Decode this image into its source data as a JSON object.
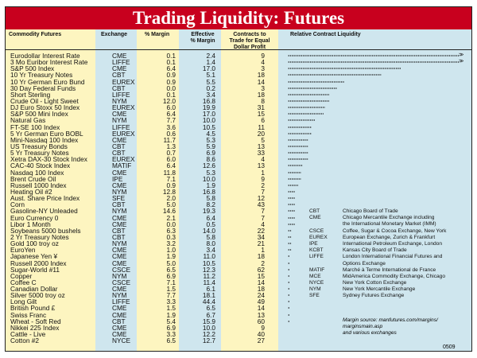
{
  "title": "Trading Liquidity: Futures",
  "chart_data": {
    "type": "table",
    "columns": [
      "Commodity Futures",
      "Exchange",
      "% Margin",
      "Effective % Margin",
      "Contracts to Trade for Equal Dollar Profit",
      "Relative Contract Liquidity"
    ],
    "rows": [
      [
        "Eurodollar Interest Rate",
        "CME",
        "0.1",
        "2.4",
        "9",
        100,
        true
      ],
      [
        "3 Mo Euribor Interest Rate",
        "LIFFE",
        "0.1",
        "1.4",
        "4",
        100,
        true
      ],
      [
        "S&P 500 Index",
        "CME",
        "6.4",
        "17.0",
        "3",
        66,
        false
      ],
      [
        "10 Yr Treasury Notes",
        "CBT",
        "0.9",
        "5.1",
        "18",
        55,
        false
      ],
      [
        "10 Yr German Euro Bund",
        "EUREX",
        "0.9",
        "5.5",
        "14",
        33,
        false
      ],
      [
        "30 Day Federal Funds",
        "CBT",
        "0.0",
        "0.2",
        "3",
        29,
        false
      ],
      [
        "Short Sterling",
        "LIFFE",
        "0.1",
        "3.4",
        "18",
        24,
        false
      ],
      [
        "Crude Oil - Light Sweet",
        "NYM",
        "12.0",
        "16.8",
        "8",
        24,
        false
      ],
      [
        "DJ Euro Stoxx 50 Index",
        "EUREX",
        "6.0",
        "19.9",
        "31",
        22,
        false
      ],
      [
        "S&P 500 Mini Index",
        "CME",
        "6.4",
        "17.0",
        "15",
        21,
        false
      ],
      [
        "Natural Gas",
        "NYM",
        "7.7",
        "10.0",
        "6",
        16,
        false
      ],
      [
        "FT-SE 100 Index",
        "LIFFE",
        "3.6",
        "10.5",
        "11",
        14,
        false
      ],
      [
        "5 Yr German Euro BOBL",
        "EUREX",
        "0.6",
        "4.5",
        "20",
        14,
        false
      ],
      [
        "Mini-Nasdaq 100 Index",
        "CME",
        "11.7",
        "5.3",
        "5",
        12,
        false
      ],
      [
        "US Treasury Bonds",
        "CBT",
        "1.3",
        "5.9",
        "13",
        12,
        false
      ],
      [
        "5 Yr Treasury Notes",
        "CBT",
        "0.7",
        "6.9",
        "33",
        12,
        false
      ],
      [
        "Xetra DAX-30 Stock Index",
        "EUREX",
        "6.0",
        "8.6",
        "4",
        12,
        false
      ],
      [
        "CAC-40 Stock Index",
        "MATIF",
        "6.4",
        "12.6",
        "13",
        9,
        false
      ],
      [
        "Nasdaq 100 Index",
        "CME",
        "11.8",
        "5.3",
        "1",
        8,
        false
      ],
      [
        "Brent Crude Oil",
        "IPE",
        "7.1",
        "10.0",
        "9",
        8,
        false
      ],
      [
        "Russell 1000 Index",
        "CME",
        "0.9",
        "1.9",
        "2",
        6,
        false
      ],
      [
        "Heating Oil #2",
        "NYM",
        "12.8",
        "16.8",
        "7",
        4,
        false
      ],
      [
        "Aust. Share Price Index",
        "SFE",
        "2.0",
        "5.8",
        "12",
        4,
        false
      ],
      [
        "Corn",
        "CBT",
        "5.0",
        "8.2",
        "43",
        4,
        false
      ],
      [
        "Gasoline-NY Unleaded",
        "NYM",
        "14.6",
        "19.3",
        "7",
        4,
        false
      ],
      [
        "Euro Currency 0",
        "CME",
        "2.1",
        "6.4",
        "7",
        4,
        false
      ],
      [
        "Libor 1 Month",
        "CME",
        "0.0",
        "0.5",
        "4",
        4,
        false
      ],
      [
        "Soybeans 5000 bushels",
        "CBT",
        "6.3",
        "14.0",
        "22",
        2.5,
        false
      ],
      [
        "2 Yr Treasury Notes",
        "CBT",
        "0.3",
        "5.8",
        "34",
        2.5,
        false
      ],
      [
        "Gold 100 troy oz",
        "NYM",
        "3.2",
        "8.0",
        "21",
        2.5,
        false
      ],
      [
        "EuroYen",
        "CME",
        "1.0",
        "3.4",
        "1",
        2.5,
        false
      ],
      [
        "Japanese Yen ¥",
        "CME",
        "1.9",
        "11.0",
        "18",
        1,
        false
      ],
      [
        "Russell 2000 Index",
        "CME",
        "5.0",
        "10.5",
        "2",
        1,
        false
      ],
      [
        "Sugar-World #11",
        "CSCE",
        "6.5",
        "12.3",
        "62",
        1,
        false
      ],
      [
        "Copper",
        "NYM",
        "6.9",
        "11.2",
        "15",
        1,
        false
      ],
      [
        "Coffee C",
        "CSCE",
        "7.1",
        "11.4",
        "14",
        1,
        false
      ],
      [
        "Canadian Dollar",
        "CME",
        "1.5",
        "6.1",
        "18",
        1,
        false
      ],
      [
        "Silver 5000 troy oz",
        "NYM",
        "7.7",
        "18.1",
        "24",
        1,
        false
      ],
      [
        "Long Gilt",
        "LIFFE",
        "3.3",
        "44.4",
        "49",
        1,
        false
      ],
      [
        "British Pound £",
        "CME",
        "1.5",
        "6.5",
        "14",
        1,
        false
      ],
      [
        "Swiss Franc",
        "CME",
        "1.9",
        "6.7",
        "13",
        1,
        false
      ],
      [
        "Wheat - Soft Red",
        "CBT",
        "5.4",
        "15.9",
        "60",
        1,
        false
      ],
      [
        "Nikkei 225 Index",
        "CME",
        "6.9",
        "10.0",
        "9",
        0,
        false
      ],
      [
        "Cattle - Live",
        "CME",
        "3.3",
        "12.2",
        "40",
        0,
        false
      ],
      [
        "Cotton #2",
        "NYCE",
        "6.5",
        "12.7",
        "27",
        0,
        false
      ]
    ]
  },
  "header": {
    "c0": "Commodity Futures",
    "c1": "Exchange",
    "c2": "% Margin",
    "c3a": "Effective",
    "c3b": "% Margin",
    "c4a": "Contracts to",
    "c4b": "Trade for Equal",
    "c4c": "Dollar Profit",
    "c5": "Relative Contract Liquidity"
  },
  "legend": [
    [
      "CBT",
      "Chicago Board of Trade"
    ],
    [
      "CME",
      "Chicago Mercantile Exchange including"
    ],
    [
      "",
      "the International Monetary Market (IMM)"
    ],
    [
      "CSCE",
      "Coffee, Sugar & Cocoa Exchange, New York"
    ],
    [
      "EUREX",
      "European Exchange, Zurich & Frankfurt"
    ],
    [
      "IPE",
      "International Petroleum Exchange, London"
    ],
    [
      "KCBT",
      "Kansas City Board of Trade"
    ],
    [
      "LIFFE",
      "London International Financial Futures and"
    ],
    [
      "",
      "Options Exchange"
    ],
    [
      "MATIF",
      "Marché à Terme International de France"
    ],
    [
      "MCE",
      "MidAmerica Commodity Exchange, Chicago"
    ],
    [
      "NYCE",
      "New York Cotton Exchange"
    ],
    [
      "NYM",
      "New York Mercantile Exchange"
    ],
    [
      "SFE",
      "Sydney Futures Exchange"
    ]
  ],
  "source": {
    "l1": "Margin source: manfutures.com/margins/",
    "l2": "marginsmain.asp",
    "l3": "and various exchanges"
  },
  "code": "0509"
}
